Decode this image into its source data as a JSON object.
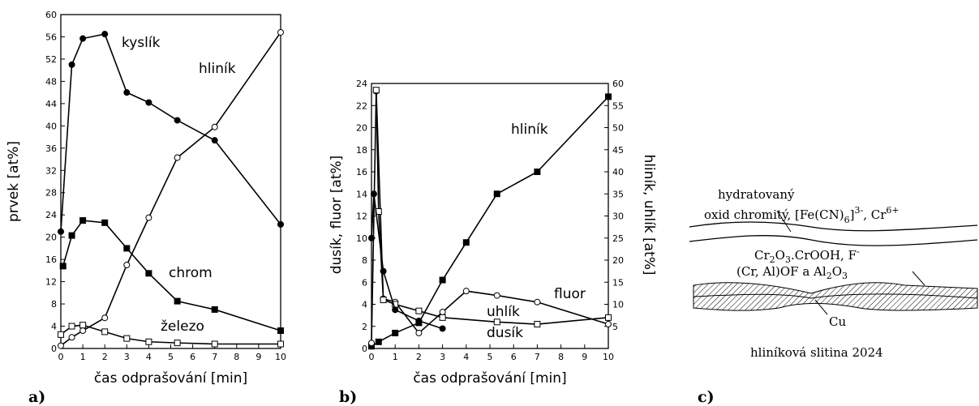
{
  "chart_data": [
    {
      "type": "line",
      "panel_label": "a)",
      "xlabel": "čas odprašování [min]",
      "ylabel": "prvek [at%]",
      "xlim": [
        0,
        10
      ],
      "xticks": [
        0,
        1,
        2,
        3,
        4,
        5,
        6,
        7,
        8,
        9,
        10
      ],
      "ylim": [
        0,
        60
      ],
      "yticks": [
        0,
        4,
        8,
        12,
        16,
        20,
        24,
        28,
        32,
        36,
        40,
        44,
        48,
        52,
        56,
        60
      ],
      "series": [
        {
          "name": "kyslík",
          "marker": "filled-circle",
          "color": "#000",
          "x": [
            0,
            0.5,
            1,
            2,
            3,
            4,
            5.3,
            7,
            10
          ],
          "values": [
            21,
            51,
            55.7,
            56.5,
            46,
            44.2,
            41,
            37.4,
            22.3
          ]
        },
        {
          "name": "hliník",
          "marker": "open-circle",
          "color": "#000",
          "x": [
            0,
            0.5,
            1,
            2,
            3,
            4,
            5.3,
            7,
            10
          ],
          "values": [
            0.5,
            2,
            3.2,
            5.5,
            15,
            23.5,
            34.3,
            39.8,
            56.8
          ]
        },
        {
          "name": "chrom",
          "marker": "filled-square",
          "color": "#000",
          "x": [
            0.1,
            0.5,
            1,
            2,
            3,
            4,
            5.3,
            7,
            10
          ],
          "values": [
            14.8,
            20.3,
            23,
            22.6,
            18,
            13.5,
            8.5,
            7,
            3.2
          ]
        },
        {
          "name": "železo",
          "marker": "open-square",
          "color": "#000",
          "x": [
            0,
            0.5,
            1,
            2,
            3,
            4,
            5.3,
            7,
            10
          ],
          "values": [
            2.5,
            4,
            4.2,
            3,
            1.8,
            1.2,
            1,
            0.8,
            0.8
          ]
        }
      ]
    },
    {
      "type": "line",
      "panel_label": "b)",
      "xlabel": "čas odprašování [min]",
      "ylabel": "dusík, fluor [at%]",
      "y2label": "hliník, uhlík [at%]",
      "xlim": [
        0,
        10
      ],
      "xticks": [
        0,
        1,
        2,
        3,
        4,
        5,
        6,
        7,
        8,
        9,
        10
      ],
      "ylim": [
        0,
        24
      ],
      "yticks": [
        0,
        2,
        4,
        6,
        8,
        10,
        12,
        14,
        16,
        18,
        20,
        22,
        24
      ],
      "y2lim": [
        0,
        60
      ],
      "y2ticks": [
        5,
        10,
        15,
        20,
        25,
        30,
        35,
        40,
        45,
        50,
        55,
        60
      ],
      "series": [
        {
          "name": "hliník",
          "marker": "filled-square",
          "color": "#000",
          "axis": "y2",
          "x": [
            0,
            0.3,
            1,
            2,
            3,
            4,
            5.3,
            7,
            10
          ],
          "values": [
            0.5,
            1.5,
            3.5,
            5.8,
            15.5,
            24,
            35,
            40,
            57
          ]
        },
        {
          "name": "fluor",
          "marker": "open-circle",
          "color": "#000",
          "x": [
            0,
            0.2,
            0.5,
            1,
            2,
            3,
            4,
            5.3,
            7,
            10
          ],
          "values": [
            0.5,
            23.3,
            4.5,
            4.2,
            1.4,
            3.3,
            5.2,
            4.8,
            4.2,
            2.2
          ]
        },
        {
          "name": "uhlík",
          "marker": "open-square",
          "color": "#000",
          "axis": "y2",
          "x": [
            0.2,
            0.3,
            0.5,
            1,
            2,
            3,
            5.3,
            7,
            10
          ],
          "values": [
            58.5,
            31,
            11,
            10,
            8.5,
            7,
            6,
            5.5,
            7
          ]
        },
        {
          "name": "dusík",
          "marker": "filled-circle",
          "color": "#000",
          "x": [
            0,
            0.1,
            0.5,
            1,
            2,
            3
          ],
          "values": [
            10,
            14,
            7,
            3.5,
            2.5,
            1.8
          ]
        }
      ]
    }
  ],
  "diagram": {
    "panel_label": "c)",
    "top_label_1": "hydratovaný",
    "top_label_2": [
      "oxid chromitý, [Fe(CN)",
      "6",
      "]",
      "3-",
      ", Cr",
      "6+"
    ],
    "mid_label": [
      "Cr",
      "2",
      "O",
      "3",
      ".CrOOH, F",
      "-"
    ],
    "low_label": [
      "(Cr, Al)OF a Al",
      "2",
      "O",
      "3"
    ],
    "cu_label": "Cu",
    "base_label": "hliníková slitina 2024"
  }
}
